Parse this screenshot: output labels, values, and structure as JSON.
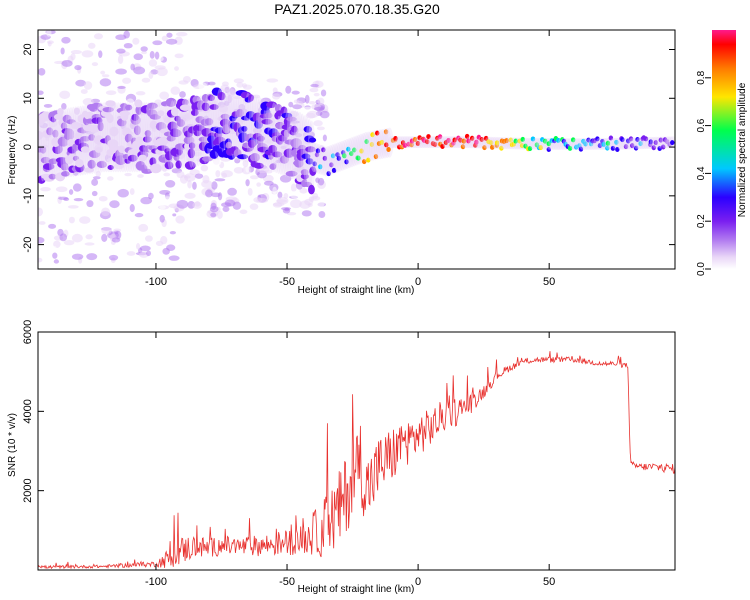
{
  "title": "PAZ1.2025.070.18.35.G20",
  "colors": {
    "snr_line": "#e8312e",
    "colormap": [
      "#ffffff",
      "#e9d6f7",
      "#b27cf0",
      "#7a1ff0",
      "#2b00ff",
      "#00c8ff",
      "#00ff4c",
      "#ffe600",
      "#ff7a00",
      "#ff0000",
      "#ff1a8c"
    ]
  },
  "chart_data": [
    {
      "type": "heatmap",
      "title": "PAZ1.2025.070.18.35.G20",
      "xlabel": "Height of straight line (km)",
      "ylabel": "Frequency (Hz)",
      "xlim": [
        -145,
        98
      ],
      "ylim": [
        -25,
        24
      ],
      "xticks": [
        -100,
        -50,
        0,
        50
      ],
      "yticks": [
        -20,
        -10,
        0,
        10,
        20
      ],
      "colorbar": {
        "label": "Normalized spectral amplitude",
        "range": [
          0.0,
          1.0
        ],
        "ticks": [
          "0.0",
          "0.2",
          "0.4",
          "0.6",
          "0.8"
        ],
        "colormap": "rainbow (white → purple → blue → cyan → green → yellow → red → magenta)"
      },
      "ridge": {
        "description": "dominant frequency ridge of normalized spectral amplitude",
        "x": [
          -145,
          -120,
          -100,
          -85,
          -75,
          -65,
          -55,
          -45,
          -40,
          -35,
          -30,
          -25,
          -20,
          -15,
          -10,
          0,
          20,
          40,
          60,
          80,
          98
        ],
        "frequency": [
          0,
          2,
          2,
          3,
          5,
          4,
          2,
          0,
          -2,
          -3,
          -2,
          -1,
          0,
          0.5,
          1,
          1,
          1,
          0.7,
          0.6,
          0.7,
          1
        ],
        "amplitude": [
          0.15,
          0.18,
          0.2,
          0.25,
          0.35,
          0.3,
          0.3,
          0.25,
          0.35,
          0.4,
          0.45,
          0.55,
          0.7,
          0.8,
          0.85,
          0.9,
          0.9,
          0.6,
          0.5,
          0.4,
          0.3
        ]
      }
    },
    {
      "type": "line",
      "xlabel": "Height of straight line (km)",
      "ylabel": "SNR (10 * v/v)",
      "xlim": [
        -145,
        98
      ],
      "ylim": [
        0,
        6000
      ],
      "xticks": [
        -100,
        -50,
        0,
        50
      ],
      "yticks": [
        2000,
        4000,
        6000
      ],
      "series": [
        {
          "x": [
            -145,
            -120,
            -100,
            -95,
            -90,
            -85,
            -80,
            -75,
            -70,
            -65,
            -60,
            -55,
            -50,
            -45,
            -40,
            -35,
            -30,
            -25,
            -22,
            -20,
            -18,
            -15,
            -10,
            -5,
            0,
            5,
            10,
            15,
            20,
            25,
            30,
            35,
            40,
            45,
            50,
            55,
            60,
            65,
            70,
            75,
            80,
            81,
            85,
            90,
            98
          ],
          "y": [
            70,
            90,
            150,
            300,
            500,
            600,
            550,
            620,
            580,
            600,
            620,
            650,
            700,
            750,
            900,
            1100,
            1500,
            2300,
            2800,
            2000,
            2200,
            2600,
            2900,
            3200,
            3400,
            3600,
            3900,
            4000,
            4200,
            4500,
            4900,
            5100,
            5250,
            5300,
            5300,
            5300,
            5300,
            5250,
            5200,
            5200,
            5150,
            2650,
            2600,
            2600,
            2550
          ],
          "noise": [
            60,
            60,
            120,
            450,
            600,
            500,
            420,
            420,
            420,
            420,
            450,
            500,
            550,
            600,
            900,
            1400,
            1700,
            1700,
            1800,
            1500,
            1500,
            1300,
            1200,
            1000,
            900,
            800,
            700,
            600,
            450,
            300,
            200,
            150,
            120,
            120,
            120,
            120,
            120,
            110,
            110,
            110,
            110,
            150,
            150,
            180,
            200
          ]
        }
      ]
    }
  ]
}
